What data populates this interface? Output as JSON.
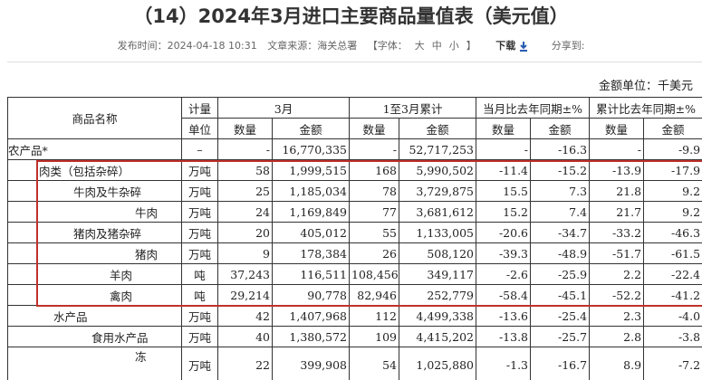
{
  "header": {
    "title": "（14）2024年3月进口主要商品量值表（美元值）"
  },
  "meta": {
    "published": "发布时间：2024-04-18 10:31",
    "source": "文章来源：海关总署",
    "font_label": "【字体：",
    "font_sizes": [
      "大",
      "中",
      "小"
    ],
    "font_close": "】",
    "download": "下载",
    "share": "分享到:"
  },
  "unit_note": "金额单位：千美元",
  "table": {
    "header_top": [
      "商品名称",
      "计量",
      "3月",
      "1至3月累计",
      "当月比去年同期±%",
      "累计比去年同期±%"
    ],
    "header_bottom": [
      "单位",
      "数量",
      "金额",
      "数量",
      "金额",
      "数量",
      "金额",
      "数量",
      "金额"
    ],
    "rows": [
      [
        "农产品*",
        "–",
        "-",
        "16,770,335",
        "-",
        "52,717,253",
        "-",
        "-16.3",
        "-",
        "-9.9"
      ],
      [
        "肉类（包括杂碎）",
        "万吨",
        "58",
        "1,999,515",
        "168",
        "5,990,502",
        "-11.4",
        "-15.2",
        "-13.9",
        "-17.9"
      ],
      [
        "牛肉及牛杂碎",
        "万吨",
        "25",
        "1,185,034",
        "78",
        "3,729,875",
        "15.5",
        "7.3",
        "21.8",
        "9.2"
      ],
      [
        "牛肉",
        "万吨",
        "24",
        "1,169,849",
        "77",
        "3,681,612",
        "15.2",
        "7.4",
        "21.7",
        "9.2"
      ],
      [
        "猪肉及猪杂碎",
        "万吨",
        "20",
        "405,012",
        "55",
        "1,133,005",
        "-20.6",
        "-34.7",
        "-33.2",
        "-46.3"
      ],
      [
        "猪肉",
        "万吨",
        "9",
        "178,384",
        "26",
        "508,120",
        "-39.3",
        "-48.9",
        "-51.7",
        "-61.5"
      ],
      [
        "羊肉",
        "吨",
        "37,243",
        "116,511",
        "108,456",
        "349,117",
        "-2.6",
        "-25.9",
        "2.2",
        "-22.4"
      ],
      [
        "禽肉",
        "吨",
        "29,214",
        "90,778",
        "82,946",
        "252,779",
        "-58.4",
        "-45.1",
        "-52.2",
        "-41.2"
      ],
      [
        "水产品",
        "万吨",
        "42",
        "1,407,968",
        "112",
        "4,499,338",
        "-13.6",
        "-25.4",
        "2.3",
        "-4.0"
      ],
      [
        "食用水产品",
        "万吨",
        "40",
        "1,380,572",
        "109",
        "4,415,202",
        "-13.8",
        "-25.7",
        "2.8",
        "-3.8"
      ],
      [
        "冻",
        "万吨",
        "22",
        "399,908",
        "54",
        "1,025,880",
        "-1.3",
        "-16.7",
        "8.9",
        "-7.2"
      ]
    ]
  }
}
